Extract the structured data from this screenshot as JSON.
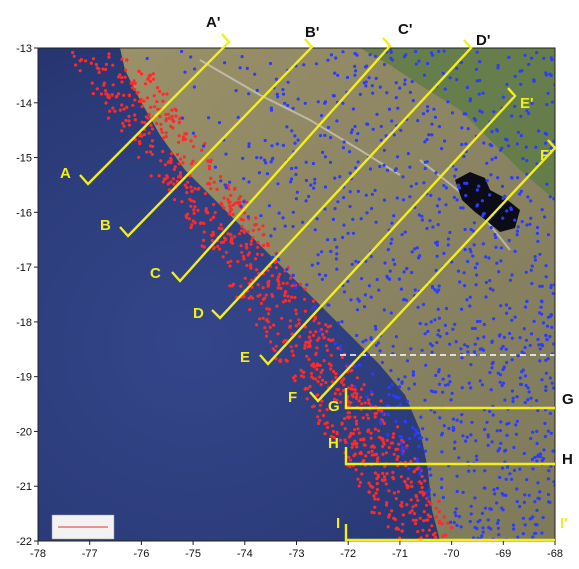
{
  "map": {
    "lon_range": [
      -78,
      -68
    ],
    "lat_range": [
      -22,
      -13
    ],
    "x_ticks": [
      "-78",
      "-77",
      "-76",
      "-75",
      "-74",
      "-73",
      "-72",
      "-71",
      "-70",
      "-69",
      "-68"
    ],
    "y_ticks": [
      "-13",
      "-14",
      "-15",
      "-16",
      "-17",
      "-18",
      "-19",
      "-20",
      "-21",
      "-22"
    ],
    "colors": {
      "ocean": "#2b3a78",
      "land": "#8a8360",
      "highland": "#6f8a4c",
      "profile_line": "#f2ee1c",
      "red_dots": "#ff2a2a",
      "blue_dots": "#2a3cff",
      "dashed": "#ffffff"
    },
    "profiles": [
      {
        "start": "A",
        "end": "A'"
      },
      {
        "start": "B",
        "end": "B'"
      },
      {
        "start": "C",
        "end": "C'"
      },
      {
        "start": "D",
        "end": "D'"
      },
      {
        "start": "E",
        "end": "E'"
      },
      {
        "start": "F",
        "end": "F'"
      },
      {
        "start": "G",
        "end": "G"
      },
      {
        "start": "H",
        "end": "H"
      },
      {
        "start": "I",
        "end": "I'"
      }
    ]
  }
}
